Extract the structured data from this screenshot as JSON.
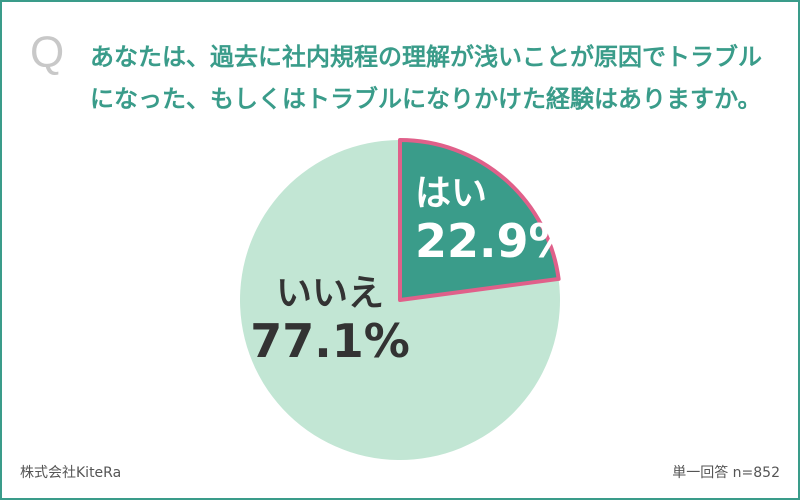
{
  "header": {
    "q_mark": "Q",
    "question": "あなたは、過去に社内規程の理解が浅いことが原因でトラブルになった、もしくはトラブルになりかけた経験はありますか。"
  },
  "chart_data": {
    "type": "pie",
    "slices": [
      {
        "label": "はい",
        "value": 22.9,
        "value_label": "22.9%",
        "color": "#3a9c8a",
        "stroke": "#e0608a",
        "text_color": "#ffffff"
      },
      {
        "label": "いいえ",
        "value": 77.1,
        "value_label": "77.1%",
        "color": "#c2e6d4",
        "text_color": "#333333"
      }
    ]
  },
  "footer": {
    "company": "株式会社KiteRa",
    "note": "単一回答 n=852"
  }
}
